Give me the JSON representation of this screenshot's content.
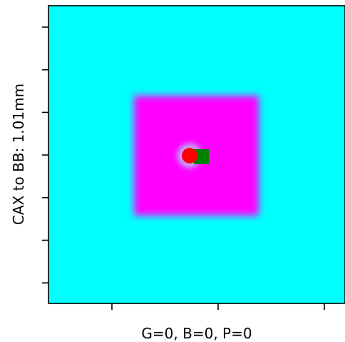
{
  "chart_data": {
    "type": "heatmap",
    "xlabel": "G=0, B=0, P=0",
    "ylabel": "CAX to BB: 1.01mm",
    "colormap": {
      "background": "#00ffff",
      "field": "#ff00ff"
    },
    "markers": [
      {
        "name": "bb",
        "shape": "circle",
        "color": "#ff0000",
        "x": 0,
        "y": 0
      },
      {
        "name": "cax",
        "shape": "square",
        "color": "#008000",
        "x": 0.9,
        "y": -0.1
      }
    ],
    "x_ticks": 3,
    "y_ticks": 7,
    "grid": false
  }
}
